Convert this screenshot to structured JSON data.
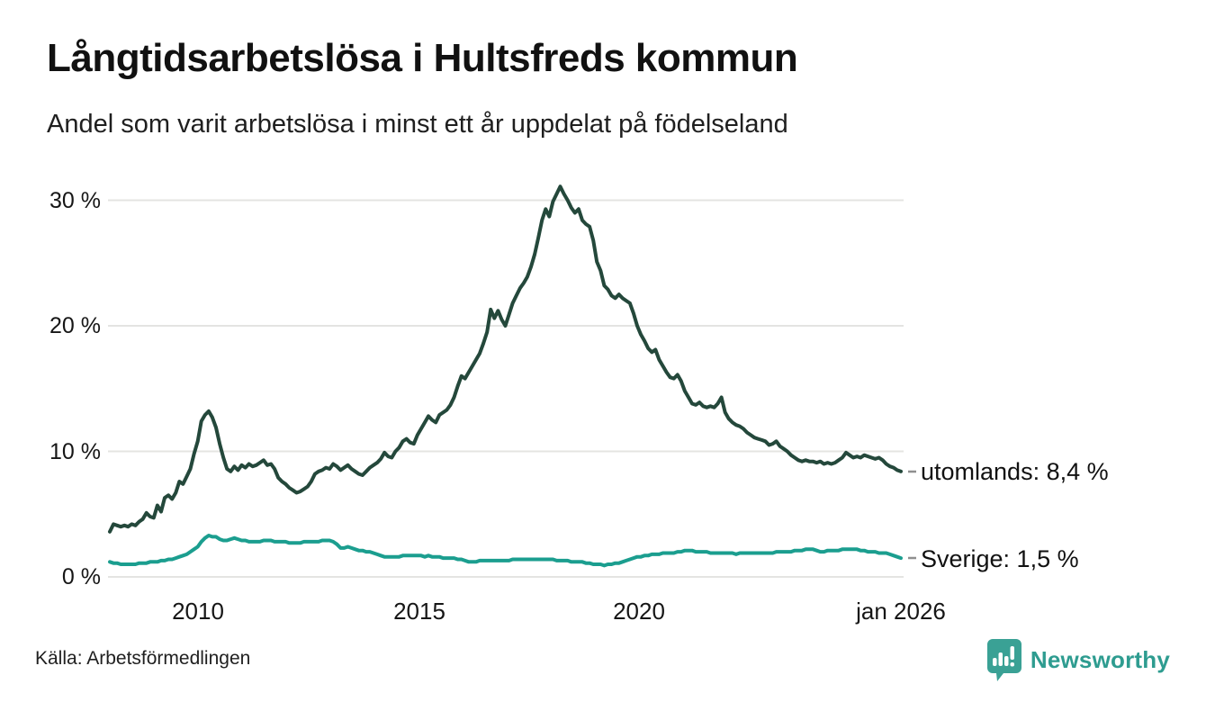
{
  "header": {
    "title": "Långtidsarbetslösa i Hultsfreds kommun",
    "subtitle": "Andel som varit arbetslösa i minst ett år uppdelat på födelseland"
  },
  "footer": {
    "source": "Källa: Arbetsförmedlingen",
    "brand": "Newsworthy"
  },
  "chart_data": {
    "type": "line",
    "title": "Långtidsarbetslösa i Hultsfreds kommun",
    "subtitle": "Andel som varit arbetslösa i minst ett år uppdelat på födelseland",
    "xlabel": "",
    "ylabel": "",
    "unit": "%",
    "grid": "horizontal",
    "legend_position": "line-end-labels",
    "xlim": [
      2008,
      2026.05
    ],
    "ylim": [
      0,
      32
    ],
    "yticks": [
      {
        "value": 30,
        "label": "30 %"
      },
      {
        "value": 20,
        "label": "20 %"
      },
      {
        "value": 10,
        "label": "10 %"
      },
      {
        "value": 0,
        "label": "0 %"
      }
    ],
    "xticks": [
      {
        "value": 2010,
        "label": "2010"
      },
      {
        "value": 2015,
        "label": "2015"
      },
      {
        "value": 2020,
        "label": "2020"
      },
      {
        "value": 2026,
        "label": "jan 2026"
      }
    ],
    "x_start_year": 2008.0,
    "x_step_months": 1,
    "series": [
      {
        "name": "utomlands",
        "end_label": "utomlands: 8,4 %",
        "last_value": "8,4 %",
        "color": "#24483b",
        "values": [
          3.6,
          4.2,
          4.1,
          4.0,
          4.1,
          4.0,
          4.2,
          4.1,
          4.4,
          4.6,
          5.1,
          4.8,
          4.7,
          5.7,
          5.2,
          6.3,
          6.5,
          6.2,
          6.7,
          7.6,
          7.4,
          8.0,
          8.6,
          9.8,
          10.8,
          12.4,
          12.9,
          13.2,
          12.7,
          11.9,
          10.6,
          9.5,
          8.6,
          8.4,
          8.8,
          8.5,
          8.9,
          8.7,
          9.0,
          8.8,
          8.9,
          9.1,
          9.3,
          8.9,
          9.0,
          8.6,
          7.9,
          7.6,
          7.4,
          7.1,
          6.9,
          6.7,
          6.8,
          7.0,
          7.2,
          7.6,
          8.2,
          8.4,
          8.5,
          8.7,
          8.6,
          9.0,
          8.8,
          8.5,
          8.7,
          8.9,
          8.6,
          8.4,
          8.2,
          8.1,
          8.4,
          8.7,
          8.9,
          9.1,
          9.4,
          9.9,
          9.6,
          9.5,
          10.0,
          10.3,
          10.8,
          11.0,
          10.7,
          10.6,
          11.3,
          11.8,
          12.3,
          12.8,
          12.5,
          12.3,
          12.9,
          13.1,
          13.3,
          13.7,
          14.3,
          15.2,
          16.0,
          15.8,
          16.3,
          16.8,
          17.3,
          17.8,
          18.6,
          19.5,
          21.3,
          20.6,
          21.2,
          20.5,
          20.0,
          20.9,
          21.8,
          22.4,
          23.0,
          23.4,
          23.9,
          24.7,
          25.7,
          27.0,
          28.4,
          29.3,
          28.7,
          29.9,
          30.5,
          31.1,
          30.5,
          30.0,
          29.4,
          29.0,
          29.3,
          28.4,
          28.1,
          27.9,
          26.8,
          25.1,
          24.4,
          23.2,
          22.9,
          22.4,
          22.2,
          22.5,
          22.2,
          22.0,
          21.8,
          21.0,
          20.0,
          19.3,
          18.8,
          18.2,
          17.9,
          18.1,
          17.3,
          16.8,
          16.3,
          15.9,
          15.8,
          16.1,
          15.6,
          14.8,
          14.3,
          13.8,
          13.7,
          13.9,
          13.6,
          13.5,
          13.6,
          13.5,
          13.8,
          14.3,
          13.1,
          12.6,
          12.3,
          12.1,
          12.0,
          11.8,
          11.5,
          11.3,
          11.1,
          11.0,
          10.9,
          10.8,
          10.5,
          10.6,
          10.8,
          10.4,
          10.2,
          10.0,
          9.7,
          9.5,
          9.3,
          9.2,
          9.3,
          9.2,
          9.2,
          9.1,
          9.2,
          9.0,
          9.1,
          9.0,
          9.1,
          9.3,
          9.5,
          9.9,
          9.7,
          9.5,
          9.6,
          9.5,
          9.7,
          9.6,
          9.5,
          9.4,
          9.5,
          9.3,
          9.0,
          8.8,
          8.7,
          8.5,
          8.4
        ]
      },
      {
        "name": "Sverige",
        "end_label": "Sverige: 1,5 %",
        "last_value": "1,5 %",
        "color": "#1b9e8f",
        "values": [
          1.2,
          1.1,
          1.1,
          1.0,
          1.0,
          1.0,
          1.0,
          1.0,
          1.1,
          1.1,
          1.1,
          1.2,
          1.2,
          1.2,
          1.3,
          1.3,
          1.4,
          1.4,
          1.5,
          1.6,
          1.7,
          1.8,
          2.0,
          2.2,
          2.4,
          2.8,
          3.1,
          3.3,
          3.2,
          3.2,
          3.0,
          2.9,
          2.9,
          3.0,
          3.1,
          3.0,
          2.9,
          2.9,
          2.8,
          2.8,
          2.8,
          2.8,
          2.9,
          2.9,
          2.9,
          2.8,
          2.8,
          2.8,
          2.8,
          2.7,
          2.7,
          2.7,
          2.7,
          2.8,
          2.8,
          2.8,
          2.8,
          2.8,
          2.9,
          2.9,
          2.9,
          2.8,
          2.6,
          2.3,
          2.3,
          2.4,
          2.3,
          2.2,
          2.1,
          2.1,
          2.0,
          2.0,
          1.9,
          1.8,
          1.7,
          1.6,
          1.6,
          1.6,
          1.6,
          1.6,
          1.7,
          1.7,
          1.7,
          1.7,
          1.7,
          1.7,
          1.6,
          1.7,
          1.6,
          1.6,
          1.6,
          1.5,
          1.5,
          1.5,
          1.5,
          1.4,
          1.4,
          1.3,
          1.2,
          1.2,
          1.2,
          1.3,
          1.3,
          1.3,
          1.3,
          1.3,
          1.3,
          1.3,
          1.3,
          1.3,
          1.4,
          1.4,
          1.4,
          1.4,
          1.4,
          1.4,
          1.4,
          1.4,
          1.4,
          1.4,
          1.4,
          1.4,
          1.3,
          1.3,
          1.3,
          1.3,
          1.2,
          1.2,
          1.2,
          1.2,
          1.1,
          1.1,
          1.0,
          1.0,
          1.0,
          0.9,
          1.0,
          1.0,
          1.1,
          1.1,
          1.2,
          1.3,
          1.4,
          1.5,
          1.6,
          1.6,
          1.7,
          1.7,
          1.8,
          1.8,
          1.8,
          1.9,
          1.9,
          1.9,
          1.9,
          2.0,
          2.0,
          2.1,
          2.1,
          2.1,
          2.0,
          2.0,
          2.0,
          2.0,
          1.9,
          1.9,
          1.9,
          1.9,
          1.9,
          1.9,
          1.9,
          1.8,
          1.9,
          1.9,
          1.9,
          1.9,
          1.9,
          1.9,
          1.9,
          1.9,
          1.9,
          1.9,
          2.0,
          2.0,
          2.0,
          2.0,
          2.0,
          2.1,
          2.1,
          2.1,
          2.2,
          2.2,
          2.2,
          2.1,
          2.0,
          2.0,
          2.1,
          2.1,
          2.1,
          2.1,
          2.2,
          2.2,
          2.2,
          2.2,
          2.2,
          2.1,
          2.1,
          2.0,
          2.0,
          2.0,
          1.9,
          1.9,
          1.9,
          1.8,
          1.7,
          1.6,
          1.5
        ]
      }
    ]
  },
  "colors": {
    "utomlands_line": "#24483b",
    "sverige_line": "#1b9e8f",
    "gridline": "#e4e4e2",
    "brand_teal": "#3aa195"
  }
}
